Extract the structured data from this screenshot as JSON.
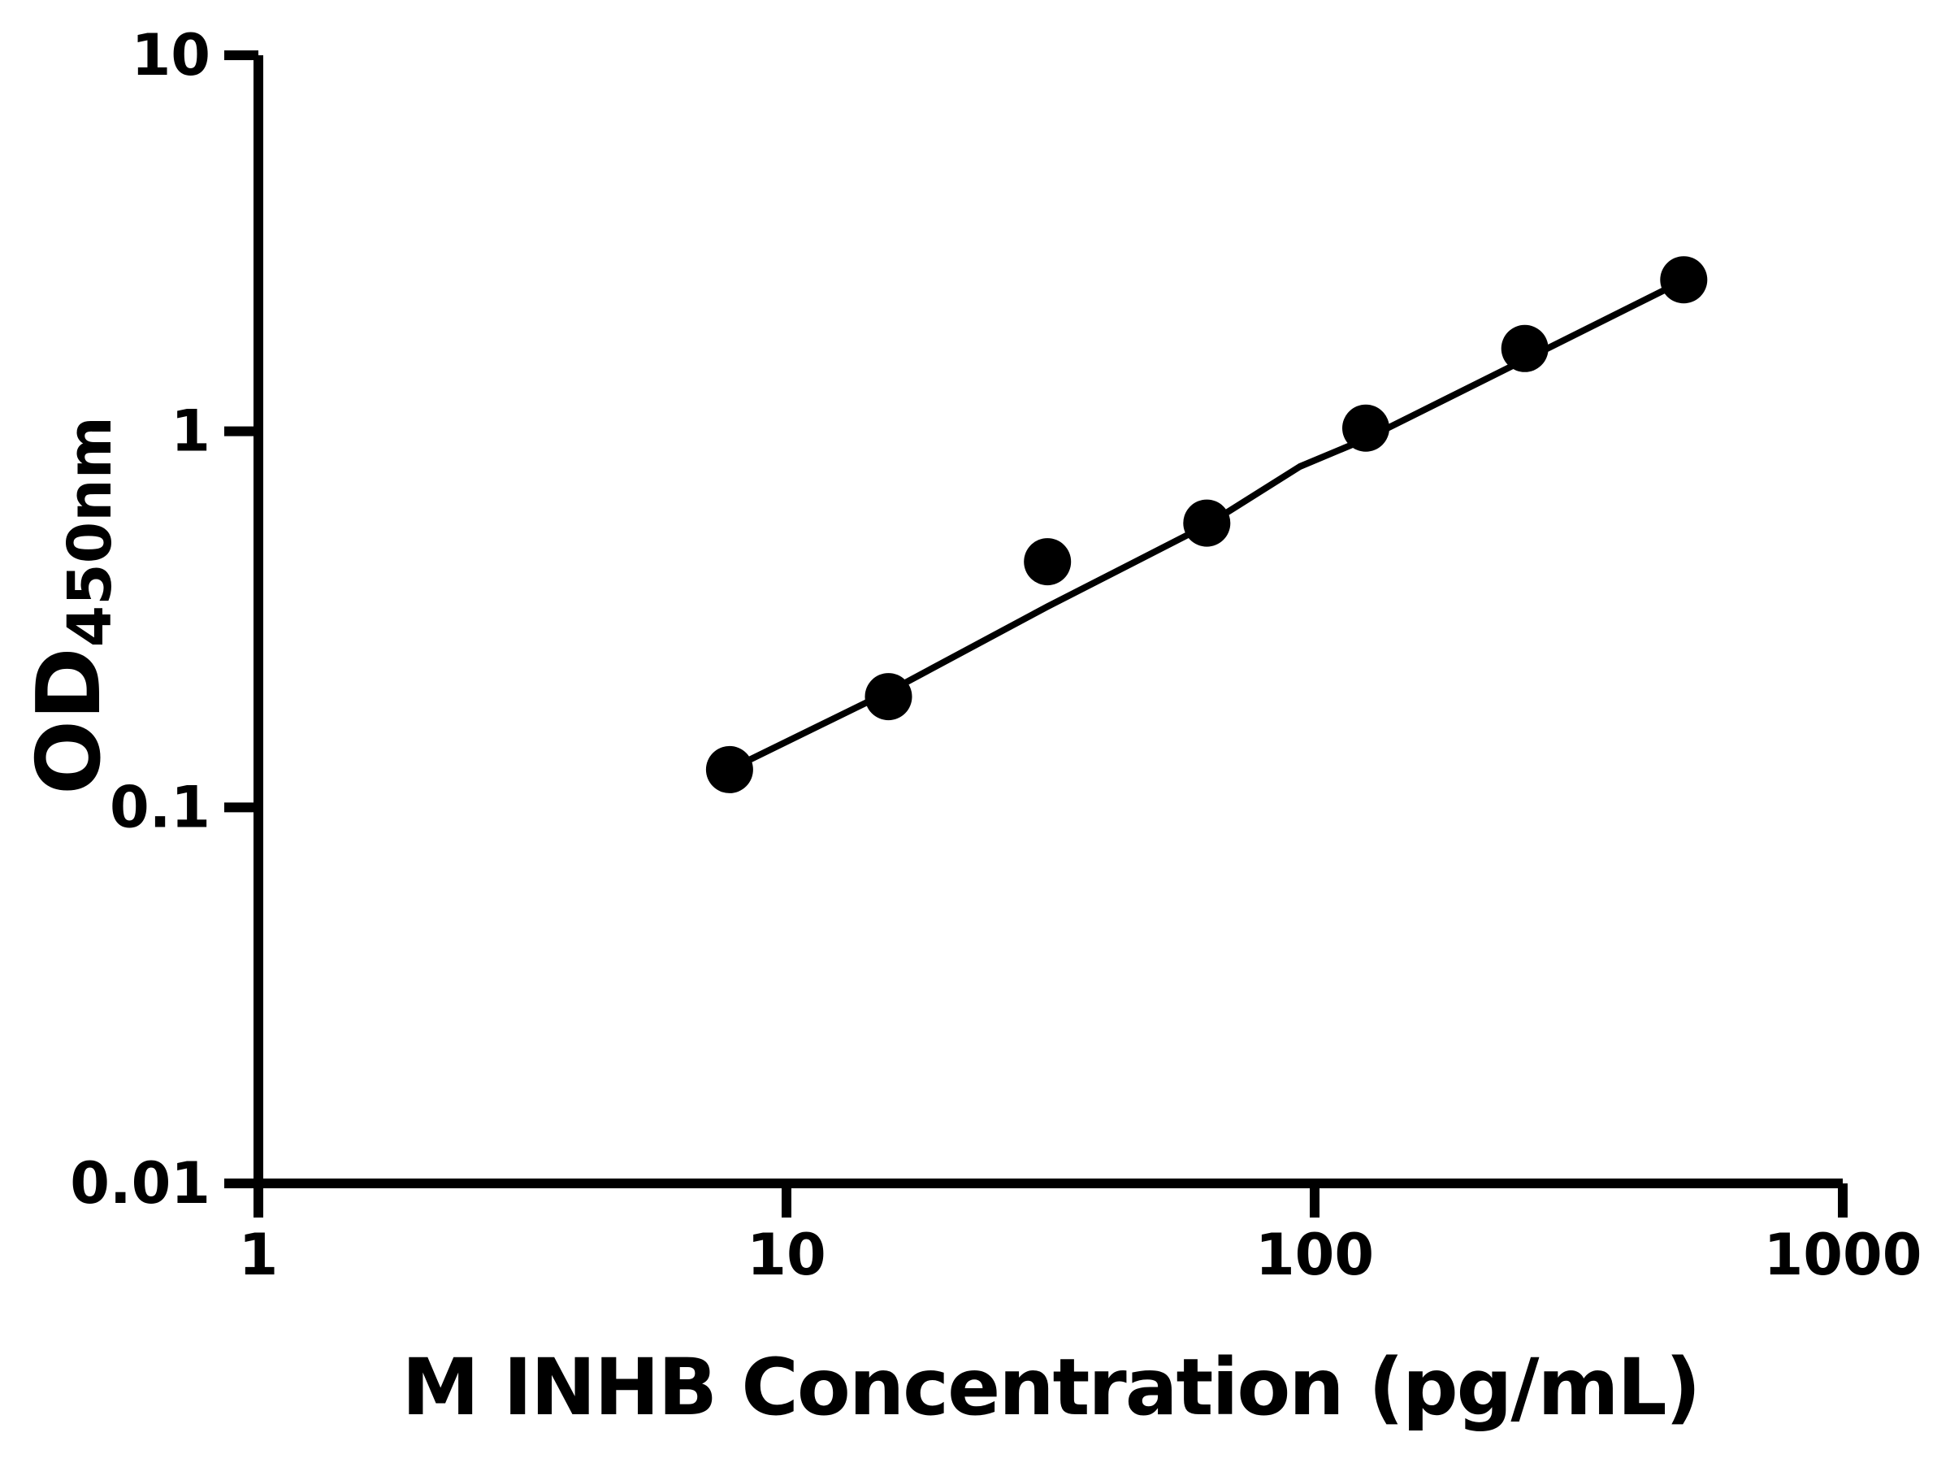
{
  "chart_data": {
    "type": "scatter",
    "title": "",
    "xlabel": "M INHB Concentration (pg/mL)",
    "ylabel": "OD450nm",
    "ylabel_main": "OD",
    "ylabel_sub": "450nm",
    "x_scale": "log",
    "y_scale": "log",
    "xlim": [
      1,
      1000
    ],
    "ylim": [
      0.01,
      10
    ],
    "grid": false,
    "legend_position": "none",
    "x_ticks": [
      {
        "value": 1,
        "label": "1"
      },
      {
        "value": 10,
        "label": "10"
      },
      {
        "value": 100,
        "label": "100"
      },
      {
        "value": 1000,
        "label": "1000"
      }
    ],
    "y_ticks": [
      {
        "value": 10,
        "label": "10"
      },
      {
        "value": 1,
        "label": "1"
      },
      {
        "value": 0.1,
        "label": "0.1"
      },
      {
        "value": 0.01,
        "label": "0.01"
      }
    ],
    "series": [
      {
        "name": "standard-curve-points",
        "marker": "filled-circle",
        "color": "#000000",
        "points": [
          {
            "x": 7.8,
            "y": 0.126
          },
          {
            "x": 15.6,
            "y": 0.197
          },
          {
            "x": 31.2,
            "y": 0.45
          },
          {
            "x": 62.5,
            "y": 0.57
          },
          {
            "x": 125,
            "y": 1.02
          },
          {
            "x": 250,
            "y": 1.66
          },
          {
            "x": 500,
            "y": 2.53
          }
        ]
      }
    ],
    "fit_line": {
      "name": "fitted-curve",
      "color": "#000000",
      "points": [
        {
          "x": 7.8,
          "y": 0.126
        },
        {
          "x": 15.6,
          "y": 0.203
        },
        {
          "x": 31.2,
          "y": 0.342
        },
        {
          "x": 62.5,
          "y": 0.563
        },
        {
          "x": 93.8,
          "y": 0.806
        },
        {
          "x": 125,
          "y": 0.954
        },
        {
          "x": 250,
          "y": 1.55
        },
        {
          "x": 500,
          "y": 2.52
        }
      ]
    },
    "colors": {
      "foreground": "#000000",
      "background": "#ffffff"
    }
  }
}
